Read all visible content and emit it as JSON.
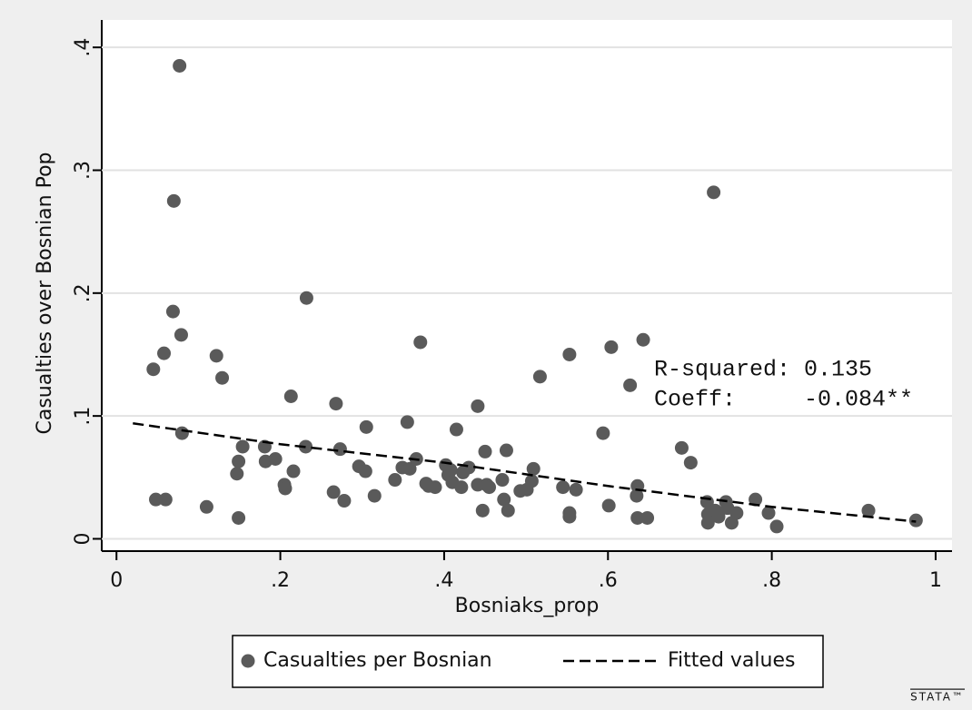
{
  "chart_data": {
    "type": "scatter",
    "xlabel": "Bosniaks_prop",
    "ylabel": "Casualties over Bosnian Pop",
    "xlim": [
      -0.018,
      1.02
    ],
    "ylim": [
      -0.01,
      0.409
    ],
    "xticks": [
      0,
      {
        "value": 0.2,
        "label": ".2"
      },
      {
        "value": 0.4,
        "label": ".4"
      },
      {
        "value": 0.6,
        "label": ".6"
      },
      {
        "value": 0.8,
        "label": ".8"
      },
      1
    ],
    "yticks": [
      0,
      {
        "value": 0.1,
        "label": ".1"
      },
      {
        "value": 0.2,
        "label": ".2"
      },
      {
        "value": 0.3,
        "label": ".3"
      },
      {
        "value": 0.4,
        "label": ".4"
      }
    ],
    "grid": true,
    "annotations": [
      "R-squared: 0.135",
      "Coeff:     -0.084**"
    ],
    "logo": "STATA™",
    "series": [
      {
        "name": "Casualties per Bosnian",
        "type": "scatter",
        "color": "#5a5a5a",
        "x": [
          0.077,
          0.07,
          0.069,
          0.079,
          0.045,
          0.058,
          0.08,
          0.048,
          0.06,
          0.122,
          0.129,
          0.11,
          0.149,
          0.154,
          0.149,
          0.147,
          0.181,
          0.182,
          0.194,
          0.205,
          0.206,
          0.213,
          0.216,
          0.231,
          0.232,
          0.268,
          0.265,
          0.273,
          0.278,
          0.296,
          0.305,
          0.304,
          0.315,
          0.34,
          0.349,
          0.355,
          0.358,
          0.366,
          0.371,
          0.378,
          0.381,
          0.389,
          0.402,
          0.405,
          0.408,
          0.41,
          0.415,
          0.421,
          0.423,
          0.43,
          0.441,
          0.441,
          0.447,
          0.45,
          0.452,
          0.455,
          0.471,
          0.473,
          0.476,
          0.478,
          0.493,
          0.501,
          0.507,
          0.509,
          0.517,
          0.545,
          0.553,
          0.553,
          0.553,
          0.561,
          0.594,
          0.601,
          0.604,
          0.627,
          0.636,
          0.643,
          0.635,
          0.636,
          0.648,
          0.69,
          0.701,
          0.721,
          0.722,
          0.722,
          0.729,
          0.731,
          0.735,
          0.744,
          0.746,
          0.751,
          0.757,
          0.78,
          0.796,
          0.806,
          0.918,
          0.976
        ],
        "values": [
          0.385,
          0.275,
          0.185,
          0.166,
          0.138,
          0.151,
          0.086,
          0.032,
          0.032,
          0.149,
          0.131,
          0.026,
          0.017,
          0.075,
          0.063,
          0.053,
          0.075,
          0.063,
          0.065,
          0.044,
          0.041,
          0.116,
          0.055,
          0.075,
          0.196,
          0.11,
          0.038,
          0.073,
          0.031,
          0.059,
          0.091,
          0.055,
          0.035,
          0.048,
          0.058,
          0.095,
          0.057,
          0.065,
          0.16,
          0.045,
          0.043,
          0.042,
          0.06,
          0.052,
          0.056,
          0.046,
          0.089,
          0.042,
          0.054,
          0.058,
          0.108,
          0.044,
          0.023,
          0.071,
          0.044,
          0.042,
          0.048,
          0.032,
          0.072,
          0.023,
          0.039,
          0.04,
          0.047,
          0.057,
          0.132,
          0.042,
          0.021,
          0.018,
          0.15,
          0.04,
          0.086,
          0.027,
          0.156,
          0.125,
          0.043,
          0.162,
          0.035,
          0.017,
          0.017,
          0.074,
          0.062,
          0.03,
          0.02,
          0.013,
          0.282,
          0.023,
          0.018,
          0.03,
          0.025,
          0.013,
          0.021,
          0.032,
          0.021,
          0.01,
          0.023,
          0.015
        ]
      },
      {
        "name": "Fitted values",
        "type": "line",
        "color": "#000000",
        "dashed": true,
        "x": [
          0.02,
          0.2,
          0.4,
          0.6,
          0.8,
          0.976
        ],
        "values": [
          0.094,
          0.077,
          0.062,
          0.043,
          0.026,
          0.014
        ]
      }
    ]
  }
}
